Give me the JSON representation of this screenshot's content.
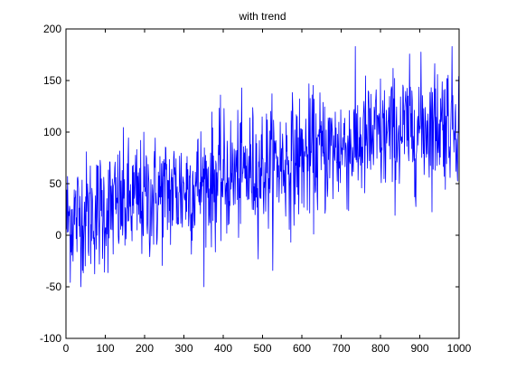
{
  "chart_data": {
    "type": "line",
    "title": "with trend",
    "xlabel": "",
    "ylabel": "",
    "xlim": [
      0,
      1000
    ],
    "ylim": [
      -100,
      200
    ],
    "xticks": [
      0,
      100,
      200,
      300,
      400,
      500,
      600,
      700,
      800,
      900,
      1000
    ],
    "yticks": [
      -100,
      -50,
      0,
      50,
      100,
      150,
      200
    ],
    "xtick_labels": [
      "0",
      "100",
      "200",
      "300",
      "400",
      "500",
      "600",
      "700",
      "800",
      "900",
      "1000"
    ],
    "ytick_labels": [
      "-100",
      "-50",
      "0",
      "50",
      "100",
      "150",
      "200"
    ],
    "grid": false,
    "series": [
      {
        "color": "#0000ff",
        "x": [
          1,
          1000
        ],
        "trend_start": 15,
        "trend_end": 115,
        "noise_std": 30,
        "observed_min": -50,
        "observed_max": 183
      }
    ]
  }
}
